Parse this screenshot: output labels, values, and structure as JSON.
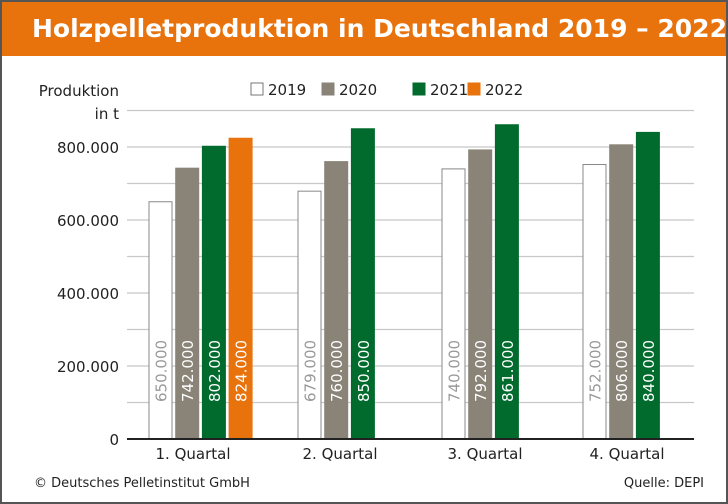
{
  "chart_data": {
    "type": "bar",
    "title": "Holzpelletproduktion in Deutschland 2019 – 2022",
    "ylabel": [
      "Produktion",
      "in t"
    ],
    "ylim": [
      0,
      800000
    ],
    "yticks": [
      0,
      200000,
      400000,
      600000,
      800000
    ],
    "ytick_labels": [
      "0",
      "200.000",
      "400.000",
      "600.000",
      "800.000"
    ],
    "grid": true,
    "legend_position": "top",
    "categories": [
      "1. Quartal",
      "2. Quartal",
      "3. Quartal",
      "4. Quartal"
    ],
    "series": [
      {
        "name": "2019",
        "color": "#FFFFFF",
        "values": [
          650000,
          679000,
          740000,
          752000
        ],
        "labels": [
          "650.000",
          "679.000",
          "740.000",
          "752.000"
        ]
      },
      {
        "name": "2020",
        "color": "#8A8478",
        "values": [
          742000,
          760000,
          792000,
          806000
        ],
        "labels": [
          "742.000",
          "760.000",
          "792.000",
          "806.000"
        ]
      },
      {
        "name": "2021",
        "color": "#006B2D",
        "values": [
          802000,
          850000,
          861000,
          840000
        ],
        "labels": [
          "802.000",
          "850.000",
          "861.000",
          "840.000"
        ]
      },
      {
        "name": "2022",
        "color": "#E8720C",
        "values": [
          824000,
          null,
          null,
          null
        ],
        "labels": [
          "824.000",
          null,
          null,
          null
        ]
      }
    ]
  },
  "footer": {
    "copyright": "© Deutsches Pelletinstitut GmbH",
    "source": "Quelle: DEPI"
  }
}
